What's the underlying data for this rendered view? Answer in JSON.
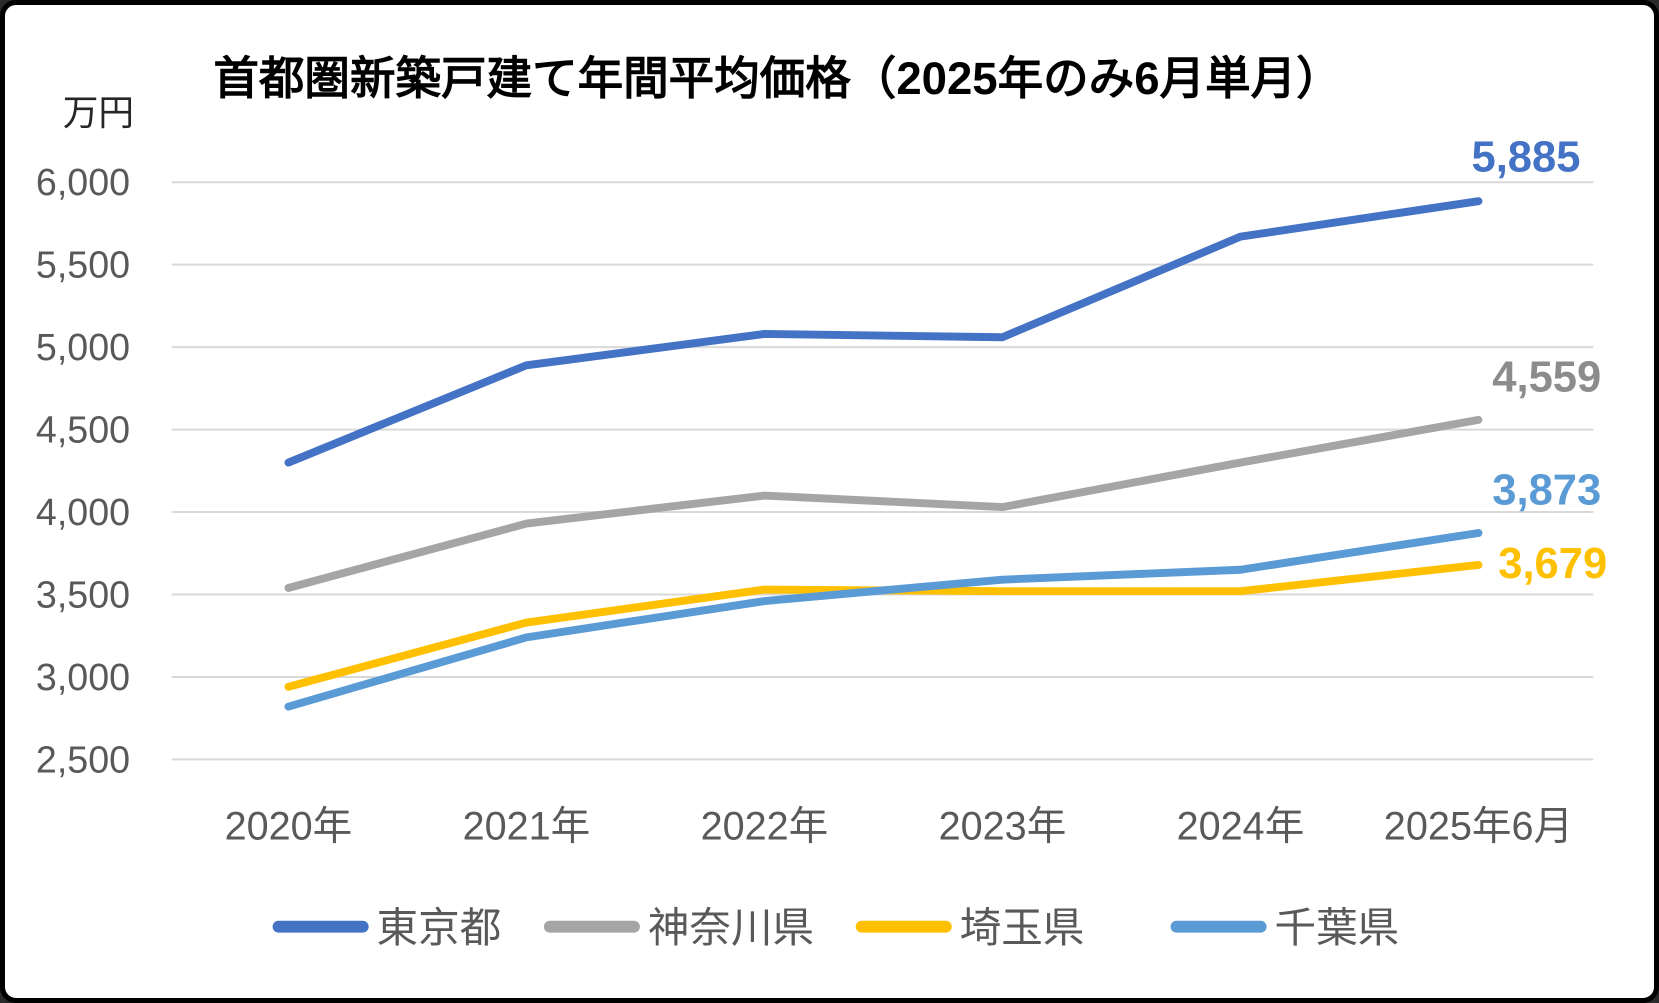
{
  "chart": {
    "title": "首都圏新築戸建て年間平均価格（2025年のみ6月単月）",
    "unit_label": "万円"
  },
  "chart_data": {
    "type": "line",
    "title": "首都圏新築戸建て年間平均価格（2025年のみ6月単月）",
    "ylabel": "万円",
    "xlabel": "",
    "categories": [
      "2020年",
      "2021年",
      "2022年",
      "2023年",
      "2024年",
      "2025年6月"
    ],
    "series": [
      {
        "name": "東京都",
        "key": "tokyo",
        "color": "#4472C4",
        "values": [
          4300,
          4890,
          5080,
          5060,
          5670,
          5885
        ],
        "end_label": "5,885",
        "end_label_color": "#4472C4"
      },
      {
        "name": "神奈川県",
        "key": "kanagawa",
        "color": "#A5A5A5",
        "values": [
          3540,
          3930,
          4100,
          4030,
          4300,
          4559
        ],
        "end_label": "4,559",
        "end_label_color": "#8C8C8C"
      },
      {
        "name": "埼玉県",
        "key": "saitama",
        "color": "#FFC000",
        "values": [
          2940,
          3330,
          3530,
          3520,
          3520,
          3679
        ],
        "end_label": "3,679",
        "end_label_color": "#FFC000"
      },
      {
        "name": "千葉県",
        "key": "chiba",
        "color": "#5B9BD5",
        "values": [
          2820,
          3240,
          3460,
          3590,
          3650,
          3873
        ],
        "end_label": "3,873",
        "end_label_color": "#5B9BD5"
      }
    ],
    "ylim": [
      2500,
      6000
    ],
    "ytick_step": 500,
    "ytick_labels": [
      "2,500",
      "3,000",
      "3,500",
      "4,000",
      "4,500",
      "5,000",
      "5,500",
      "6,000"
    ],
    "grid": true,
    "legend_position": "bottom",
    "colors": {
      "axis_text": "#595959",
      "gridline": "#D9D9D9",
      "title_text": "#000000",
      "unit_text": "#262626"
    }
  }
}
